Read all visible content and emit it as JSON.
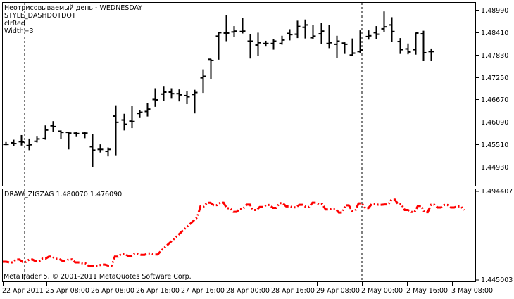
{
  "main_panel": {
    "info_lines": [
      "Неотрисовываемый день - WEDNESDAY",
      "STYLE_DASHDOTDOT",
      "clrRed",
      "Width=3"
    ],
    "price_ticks": [
      "1.48990",
      "1.48410",
      "1.47830",
      "1.47250",
      "1.46670",
      "1.46090",
      "1.45510",
      "1.44930"
    ]
  },
  "indicator_panel": {
    "title": "DRAW_ZIGZAG 1.480070 1.476090",
    "scale_top": "1.494407",
    "scale_bottom": "1.445003",
    "copyright": "MetaTrader 5, © 2001-2011 MetaQuotes Software Corp."
  },
  "time_axis": [
    "22 Apr 2011",
    "25 Apr 08:00",
    "26 Apr 08:00",
    "26 Apr 16:00",
    "27 Apr 16:00",
    "28 Apr 00:00",
    "28 Apr 16:00",
    "29 Apr 08:00",
    "2 May 00:00",
    "2 May 16:00",
    "3 May 08:00"
  ],
  "colors": {
    "zigzag": "#ff0000",
    "bars": "#000000",
    "grid": "#000000"
  },
  "chart_data": [
    {
      "type": "ohlc",
      "title": "",
      "ylim": [
        1.4465,
        1.4905
      ],
      "y_ticks": [
        1.4899,
        1.4841,
        1.4783,
        1.4725,
        1.4667,
        1.4609,
        1.4551,
        1.4493
      ],
      "bars": [
        [
          1.4551,
          1.4557,
          1.4549,
          1.4551
        ],
        [
          1.4555,
          1.4563,
          1.4546,
          1.4553
        ],
        [
          1.4558,
          1.4575,
          1.4548,
          1.4557
        ],
        [
          1.4548,
          1.4566,
          1.4536,
          1.455
        ],
        [
          1.4559,
          1.4571,
          1.4556,
          1.4565
        ],
        [
          1.4566,
          1.46,
          1.4563,
          1.4588
        ],
        [
          1.4599,
          1.4611,
          1.4583,
          1.4597
        ],
        [
          1.4585,
          1.4587,
          1.4564,
          1.4582
        ],
        [
          1.4582,
          1.4584,
          1.4538,
          1.458
        ],
        [
          1.458,
          1.4584,
          1.457,
          1.4579
        ],
        [
          1.458,
          1.4584,
          1.4567,
          1.458
        ],
        [
          1.4545,
          1.4578,
          1.4493,
          1.4536
        ],
        [
          1.4538,
          1.4551,
          1.453,
          1.4538
        ],
        [
          1.4533,
          1.4543,
          1.452,
          1.4538
        ],
        [
          1.4624,
          1.4652,
          1.4521,
          1.4608
        ],
        [
          1.4614,
          1.463,
          1.4587,
          1.4603
        ],
        [
          1.4611,
          1.4651,
          1.4593,
          1.461
        ],
        [
          1.4631,
          1.464,
          1.4619,
          1.4634
        ],
        [
          1.4636,
          1.4657,
          1.4623,
          1.4642
        ],
        [
          1.4667,
          1.4696,
          1.4648,
          1.4666
        ],
        [
          1.4681,
          1.4702,
          1.4664,
          1.4686
        ],
        [
          1.4686,
          1.4696,
          1.4669,
          1.4682
        ],
        [
          1.4682,
          1.4693,
          1.4662,
          1.4679
        ],
        [
          1.4677,
          1.4689,
          1.4655,
          1.4674
        ],
        [
          1.468,
          1.4692,
          1.4631,
          1.4685
        ],
        [
          1.4723,
          1.4745,
          1.4684,
          1.4727
        ],
        [
          1.4771,
          1.4772,
          1.4719,
          1.4768
        ],
        [
          1.4831,
          1.4842,
          1.477,
          1.484
        ],
        [
          1.4839,
          1.4886,
          1.4818,
          1.4839
        ],
        [
          1.4842,
          1.4857,
          1.4829,
          1.4844
        ],
        [
          1.4843,
          1.4878,
          1.4838,
          1.4844
        ],
        [
          1.4818,
          1.4836,
          1.4773,
          1.4818
        ],
        [
          1.4808,
          1.484,
          1.478,
          1.4814
        ],
        [
          1.4812,
          1.4819,
          1.4804,
          1.4812
        ],
        [
          1.4812,
          1.4824,
          1.4796,
          1.4818
        ],
        [
          1.4812,
          1.4832,
          1.4809,
          1.4821
        ],
        [
          1.4838,
          1.4849,
          1.482,
          1.4835
        ],
        [
          1.4836,
          1.4871,
          1.4826,
          1.4856
        ],
        [
          1.4854,
          1.4874,
          1.4825,
          1.486
        ],
        [
          1.4827,
          1.4859,
          1.4824,
          1.4831
        ],
        [
          1.4837,
          1.4865,
          1.481,
          1.4844
        ],
        [
          1.4812,
          1.4859,
          1.48,
          1.4814
        ],
        [
          1.481,
          1.4832,
          1.4775,
          1.4818
        ],
        [
          1.4813,
          1.4815,
          1.4785,
          1.481
        ],
        [
          1.4782,
          1.4825,
          1.4779,
          1.4787
        ],
        [
          1.4791,
          1.4846,
          1.4788,
          1.4795
        ],
        [
          1.483,
          1.4846,
          1.4822,
          1.4832
        ],
        [
          1.484,
          1.4857,
          1.4823,
          1.4836
        ],
        [
          1.485,
          1.4895,
          1.4841,
          1.4855
        ],
        [
          1.486,
          1.488,
          1.4817,
          1.4843
        ],
        [
          1.4817,
          1.4826,
          1.4785,
          1.4796
        ],
        [
          1.4798,
          1.4812,
          1.4784,
          1.479
        ],
        [
          1.4796,
          1.484,
          1.4783,
          1.4839
        ],
        [
          1.4837,
          1.4845,
          1.4767,
          1.4788
        ],
        [
          1.4791,
          1.4799,
          1.4767,
          1.4791
        ]
      ]
    },
    {
      "type": "line",
      "title": "DRAW_ZIGZAG",
      "style": "dash-dot-dot",
      "ylim": [
        1.445,
        1.4944
      ],
      "series": [
        {
          "values": [
            1.4552,
            1.4552,
            1.4548,
            1.4548,
            1.4564,
            1.4564,
            1.4551,
            1.4551,
            1.4564,
            1.4564,
            1.4554,
            1.4554,
            1.4569,
            1.4569,
            1.458,
            1.458,
            1.4568,
            1.4568,
            1.4558,
            1.4558,
            1.4565,
            1.4565,
            1.4548,
            1.4548,
            1.4544,
            1.4544,
            1.453,
            1.453,
            1.453,
            1.453,
            1.4536,
            1.4536,
            1.453,
            1.453,
            1.458,
            1.458,
            1.4596,
            1.4596,
            1.4584,
            1.4584,
            1.4597,
            1.4597,
            1.459,
            1.459,
            1.4598,
            1.4598,
            1.4592,
            1.4592,
            1.4612,
            1.4629,
            1.4646,
            1.4663,
            1.468,
            1.4697,
            1.4714,
            1.4731,
            1.4748,
            1.4765,
            1.4782,
            1.4799,
            1.486,
            1.486,
            1.488,
            1.488,
            1.4867,
            1.4867,
            1.4881,
            1.4881,
            1.485,
            1.485,
            1.483,
            1.483,
            1.4848,
            1.4848,
            1.487,
            1.487,
            1.484,
            1.484,
            1.4857,
            1.4857,
            1.4868,
            1.4868,
            1.4852,
            1.4852,
            1.4878,
            1.4878,
            1.486,
            1.486,
            1.4855,
            1.4855,
            1.4869,
            1.4869,
            1.4857,
            1.4857,
            1.4881,
            1.4881,
            1.4872,
            1.4872,
            1.4843,
            1.4843,
            1.4846,
            1.4846,
            1.4826,
            1.4826,
            1.4866,
            1.4866,
            1.4836,
            1.4836,
            1.4877,
            1.4877,
            1.4851,
            1.4851,
            1.4874,
            1.4874,
            1.4869,
            1.4869,
            1.4871,
            1.4871,
            1.4898,
            1.4898,
            1.4872,
            1.4872,
            1.484,
            1.484,
            1.4829,
            1.4829,
            1.4863,
            1.4863,
            1.4828,
            1.4828,
            1.4869,
            1.4869,
            1.4854,
            1.4854,
            1.4868,
            1.4868,
            1.4854,
            1.4854,
            1.486,
            1.486,
            1.4839
          ]
        }
      ]
    }
  ]
}
